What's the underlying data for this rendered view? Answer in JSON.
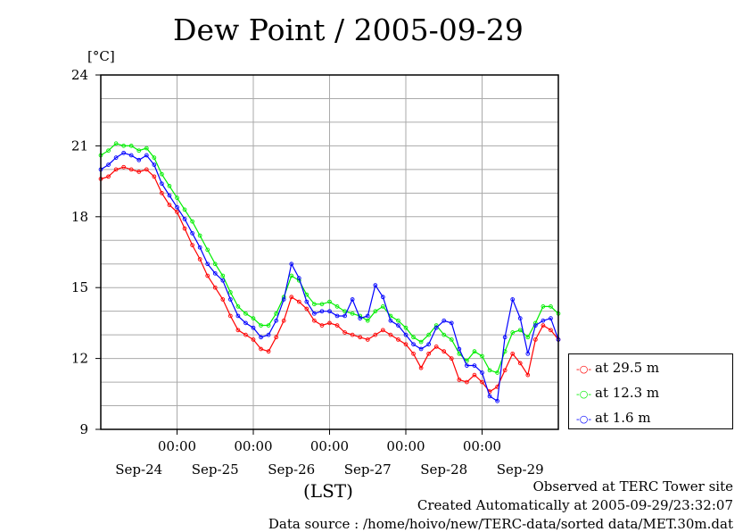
{
  "chart_data": {
    "type": "line",
    "title": "Dew Point / 2005-09-29",
    "ylabel": "[°C]",
    "xlabel": "(LST)",
    "ylim": [
      9,
      24
    ],
    "yticks": [
      9,
      12,
      15,
      18,
      21,
      24
    ],
    "grid": true,
    "legend_position": "bottom-right, outside plot",
    "x_time_labels": [
      "00:00",
      "00:00",
      "00:00",
      "00:00",
      "00:00"
    ],
    "x_date_labels": [
      "Sep-24",
      "Sep-25",
      "Sep-26",
      "Sep-27",
      "Sep-28",
      "Sep-29"
    ],
    "x_unit": "days",
    "xlim": [
      -1.0,
      5.0
    ],
    "series": [
      {
        "name": "at 29.5 m",
        "color": "#ff0000",
        "points": [
          [
            -1.0,
            19.6
          ],
          [
            -0.9,
            19.7
          ],
          [
            -0.8,
            20.0
          ],
          [
            -0.7,
            20.1
          ],
          [
            -0.6,
            20.0
          ],
          [
            -0.5,
            19.9
          ],
          [
            -0.4,
            20.0
          ],
          [
            -0.3,
            19.7
          ],
          [
            -0.2,
            19.0
          ],
          [
            -0.1,
            18.5
          ],
          [
            0.0,
            18.2
          ],
          [
            0.1,
            17.5
          ],
          [
            0.2,
            16.8
          ],
          [
            0.3,
            16.2
          ],
          [
            0.4,
            15.5
          ],
          [
            0.5,
            15.0
          ],
          [
            0.6,
            14.5
          ],
          [
            0.7,
            13.8
          ],
          [
            0.8,
            13.2
          ],
          [
            0.9,
            13.0
          ],
          [
            1.0,
            12.8
          ],
          [
            1.1,
            12.4
          ],
          [
            1.2,
            12.3
          ],
          [
            1.3,
            12.9
          ],
          [
            1.4,
            13.6
          ],
          [
            1.5,
            14.6
          ],
          [
            1.6,
            14.4
          ],
          [
            1.7,
            14.1
          ],
          [
            1.8,
            13.6
          ],
          [
            1.9,
            13.4
          ],
          [
            2.0,
            13.5
          ],
          [
            2.1,
            13.4
          ],
          [
            2.2,
            13.1
          ],
          [
            2.3,
            13.0
          ],
          [
            2.4,
            12.9
          ],
          [
            2.5,
            12.8
          ],
          [
            2.6,
            13.0
          ],
          [
            2.7,
            13.2
          ],
          [
            2.8,
            13.0
          ],
          [
            2.9,
            12.8
          ],
          [
            3.0,
            12.6
          ],
          [
            3.1,
            12.2
          ],
          [
            3.2,
            11.6
          ],
          [
            3.3,
            12.2
          ],
          [
            3.4,
            12.5
          ],
          [
            3.5,
            12.3
          ],
          [
            3.6,
            12.0
          ],
          [
            3.7,
            11.1
          ],
          [
            3.8,
            11.0
          ],
          [
            3.9,
            11.3
          ],
          [
            4.0,
            11.0
          ],
          [
            4.1,
            10.6
          ],
          [
            4.2,
            10.8
          ],
          [
            4.3,
            11.5
          ],
          [
            4.4,
            12.2
          ],
          [
            4.5,
            11.8
          ],
          [
            4.6,
            11.3
          ],
          [
            4.7,
            12.8
          ],
          [
            4.8,
            13.4
          ],
          [
            4.9,
            13.2
          ],
          [
            5.0,
            12.8
          ]
        ]
      },
      {
        "name": "at 12.3 m",
        "color": "#00ee00",
        "points": [
          [
            -1.0,
            20.6
          ],
          [
            -0.9,
            20.8
          ],
          [
            -0.8,
            21.1
          ],
          [
            -0.7,
            21.0
          ],
          [
            -0.6,
            21.0
          ],
          [
            -0.5,
            20.8
          ],
          [
            -0.4,
            20.9
          ],
          [
            -0.3,
            20.5
          ],
          [
            -0.2,
            19.8
          ],
          [
            -0.1,
            19.3
          ],
          [
            0.0,
            18.8
          ],
          [
            0.1,
            18.3
          ],
          [
            0.2,
            17.8
          ],
          [
            0.3,
            17.2
          ],
          [
            0.4,
            16.6
          ],
          [
            0.5,
            16.0
          ],
          [
            0.6,
            15.5
          ],
          [
            0.7,
            14.8
          ],
          [
            0.8,
            14.2
          ],
          [
            0.9,
            13.9
          ],
          [
            1.0,
            13.7
          ],
          [
            1.1,
            13.4
          ],
          [
            1.2,
            13.4
          ],
          [
            1.3,
            13.9
          ],
          [
            1.4,
            14.6
          ],
          [
            1.5,
            15.5
          ],
          [
            1.6,
            15.3
          ],
          [
            1.7,
            14.7
          ],
          [
            1.8,
            14.3
          ],
          [
            1.9,
            14.3
          ],
          [
            2.0,
            14.4
          ],
          [
            2.1,
            14.2
          ],
          [
            2.2,
            14.0
          ],
          [
            2.3,
            13.9
          ],
          [
            2.4,
            13.8
          ],
          [
            2.5,
            13.6
          ],
          [
            2.6,
            14.0
          ],
          [
            2.7,
            14.2
          ],
          [
            2.8,
            13.8
          ],
          [
            2.9,
            13.6
          ],
          [
            3.0,
            13.3
          ],
          [
            3.1,
            12.9
          ],
          [
            3.2,
            12.7
          ],
          [
            3.3,
            13.0
          ],
          [
            3.4,
            13.4
          ],
          [
            3.5,
            13.0
          ],
          [
            3.6,
            12.8
          ],
          [
            3.7,
            12.2
          ],
          [
            3.8,
            11.9
          ],
          [
            3.9,
            12.3
          ],
          [
            4.0,
            12.1
          ],
          [
            4.1,
            11.5
          ],
          [
            4.2,
            11.4
          ],
          [
            4.3,
            12.3
          ],
          [
            4.4,
            13.1
          ],
          [
            4.5,
            13.2
          ],
          [
            4.6,
            12.9
          ],
          [
            4.7,
            13.5
          ],
          [
            4.8,
            14.2
          ],
          [
            4.9,
            14.2
          ],
          [
            5.0,
            13.9
          ]
        ]
      },
      {
        "name": "at 1.6 m",
        "color": "#0000ff",
        "points": [
          [
            -1.0,
            20.0
          ],
          [
            -0.9,
            20.2
          ],
          [
            -0.8,
            20.5
          ],
          [
            -0.7,
            20.7
          ],
          [
            -0.6,
            20.6
          ],
          [
            -0.5,
            20.4
          ],
          [
            -0.4,
            20.6
          ],
          [
            -0.3,
            20.2
          ],
          [
            -0.2,
            19.4
          ],
          [
            -0.1,
            18.9
          ],
          [
            0.0,
            18.4
          ],
          [
            0.1,
            17.9
          ],
          [
            0.2,
            17.3
          ],
          [
            0.3,
            16.7
          ],
          [
            0.4,
            16.0
          ],
          [
            0.5,
            15.6
          ],
          [
            0.6,
            15.3
          ],
          [
            0.7,
            14.5
          ],
          [
            0.8,
            13.8
          ],
          [
            0.9,
            13.5
          ],
          [
            1.0,
            13.3
          ],
          [
            1.1,
            12.9
          ],
          [
            1.2,
            13.0
          ],
          [
            1.3,
            13.6
          ],
          [
            1.4,
            14.5
          ],
          [
            1.5,
            16.0
          ],
          [
            1.6,
            15.4
          ],
          [
            1.7,
            14.4
          ],
          [
            1.8,
            13.9
          ],
          [
            1.9,
            14.0
          ],
          [
            2.0,
            14.0
          ],
          [
            2.1,
            13.8
          ],
          [
            2.2,
            13.8
          ],
          [
            2.3,
            14.5
          ],
          [
            2.4,
            13.7
          ],
          [
            2.5,
            13.8
          ],
          [
            2.6,
            15.1
          ],
          [
            2.7,
            14.6
          ],
          [
            2.8,
            13.6
          ],
          [
            2.9,
            13.4
          ],
          [
            3.0,
            13.0
          ],
          [
            3.1,
            12.6
          ],
          [
            3.2,
            12.4
          ],
          [
            3.3,
            12.6
          ],
          [
            3.4,
            13.3
          ],
          [
            3.5,
            13.6
          ],
          [
            3.6,
            13.5
          ],
          [
            3.7,
            12.4
          ],
          [
            3.8,
            11.7
          ],
          [
            3.9,
            11.7
          ],
          [
            4.0,
            11.4
          ],
          [
            4.1,
            10.4
          ],
          [
            4.2,
            10.2
          ],
          [
            4.3,
            12.9
          ],
          [
            4.4,
            14.5
          ],
          [
            4.5,
            13.7
          ],
          [
            4.6,
            12.2
          ],
          [
            4.7,
            13.4
          ],
          [
            4.8,
            13.6
          ],
          [
            4.9,
            13.7
          ],
          [
            5.0,
            12.8
          ]
        ]
      }
    ]
  },
  "footer": {
    "line1": "Observed at TERC Tower site",
    "line2": "Created Automatically at 2005-09-29/23:32:07",
    "line3": "Data source : /home/hoivo/new/TERC-data/sorted  data/MET.30m.dat"
  }
}
